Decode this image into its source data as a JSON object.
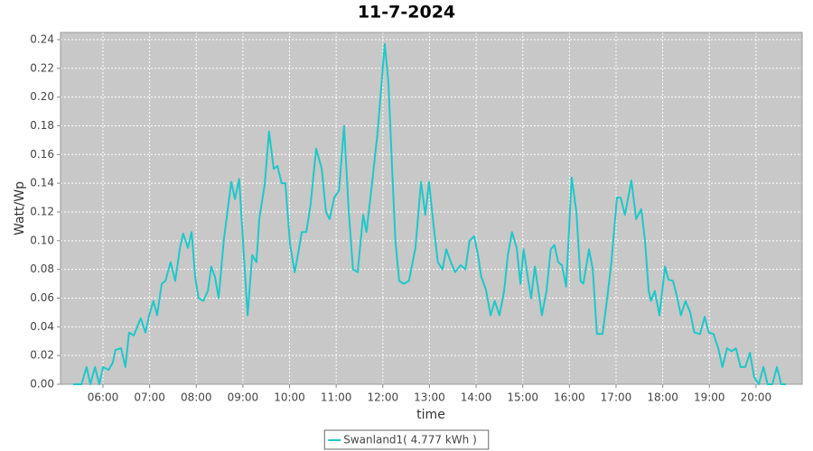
{
  "chart_data": {
    "type": "line",
    "title": "11-7-2024",
    "x_label": "time",
    "y_label": "Watt/Wp",
    "x": [
      5.36,
      5.54,
      5.65,
      5.73,
      5.83,
      5.92,
      6.0,
      6.12,
      6.21,
      6.27,
      6.39,
      6.48,
      6.56,
      6.66,
      6.81,
      6.91,
      6.99,
      7.08,
      7.16,
      7.26,
      7.34,
      7.45,
      7.55,
      7.65,
      7.72,
      7.82,
      7.9,
      7.98,
      8.05,
      8.15,
      8.25,
      8.32,
      8.4,
      8.48,
      8.59,
      8.75,
      8.83,
      8.92,
      9.02,
      9.1,
      9.2,
      9.29,
      9.35,
      9.47,
      9.56,
      9.66,
      9.74,
      9.83,
      9.91,
      10.01,
      10.11,
      10.18,
      10.26,
      10.36,
      10.45,
      10.57,
      10.69,
      10.78,
      10.86,
      10.96,
      11.06,
      11.17,
      11.27,
      11.36,
      11.46,
      11.58,
      11.65,
      11.77,
      11.89,
      12.04,
      12.12,
      12.2,
      12.27,
      12.35,
      12.45,
      12.56,
      12.7,
      12.82,
      12.91,
      12.99,
      13.09,
      13.18,
      13.28,
      13.36,
      13.46,
      13.55,
      13.67,
      13.77,
      13.86,
      13.96,
      14.04,
      14.11,
      14.21,
      14.31,
      14.4,
      14.5,
      14.6,
      14.68,
      14.77,
      14.87,
      14.95,
      15.02,
      15.12,
      15.18,
      15.26,
      15.35,
      15.41,
      15.51,
      15.6,
      15.68,
      15.76,
      15.84,
      15.93,
      16.05,
      16.15,
      16.24,
      16.3,
      16.42,
      16.5,
      16.59,
      16.71,
      16.81,
      16.9,
      17.02,
      17.1,
      17.19,
      17.33,
      17.43,
      17.54,
      17.62,
      17.7,
      17.75,
      17.83,
      17.93,
      18.05,
      18.12,
      18.22,
      18.3,
      18.39,
      18.49,
      18.59,
      18.68,
      18.8,
      18.9,
      18.99,
      19.09,
      19.19,
      19.28,
      19.38,
      19.48,
      19.57,
      19.67,
      19.77,
      19.87,
      19.96,
      20.06,
      20.16,
      20.25,
      20.35,
      20.45,
      20.54,
      20.64
    ],
    "series": [
      {
        "name": "Swanland1( 4.777 kWh )",
        "color": "#1ec8c8",
        "values": [
          0,
          0,
          0.012,
          0,
          0.012,
          0,
          0.012,
          0.01,
          0.015,
          0.024,
          0.025,
          0.012,
          0.036,
          0.034,
          0.046,
          0.036,
          0.048,
          0.058,
          0.048,
          0.07,
          0.072,
          0.085,
          0.072,
          0.095,
          0.105,
          0.095,
          0.106,
          0.074,
          0.06,
          0.058,
          0.065,
          0.082,
          0.075,
          0.06,
          0.1,
          0.141,
          0.129,
          0.143,
          0.09,
          0.048,
          0.09,
          0.085,
          0.115,
          0.14,
          0.176,
          0.15,
          0.152,
          0.14,
          0.14,
          0.098,
          0.078,
          0.09,
          0.106,
          0.106,
          0.125,
          0.164,
          0.15,
          0.12,
          0.115,
          0.13,
          0.135,
          0.18,
          0.12,
          0.08,
          0.078,
          0.118,
          0.106,
          0.14,
          0.176,
          0.237,
          0.21,
          0.15,
          0.1,
          0.072,
          0.07,
          0.072,
          0.095,
          0.141,
          0.118,
          0.141,
          0.11,
          0.085,
          0.08,
          0.094,
          0.085,
          0.078,
          0.083,
          0.08,
          0.1,
          0.103,
          0.09,
          0.075,
          0.066,
          0.048,
          0.058,
          0.048,
          0.065,
          0.09,
          0.106,
          0.095,
          0.07,
          0.094,
          0.072,
          0.06,
          0.082,
          0.062,
          0.048,
          0.065,
          0.094,
          0.097,
          0.085,
          0.083,
          0.068,
          0.144,
          0.12,
          0.072,
          0.07,
          0.094,
          0.08,
          0.035,
          0.035,
          0.06,
          0.085,
          0.13,
          0.13,
          0.118,
          0.142,
          0.115,
          0.122,
          0.1,
          0.065,
          0.058,
          0.065,
          0.048,
          0.082,
          0.073,
          0.072,
          0.062,
          0.048,
          0.058,
          0.05,
          0.036,
          0.035,
          0.047,
          0.036,
          0.035,
          0.025,
          0.012,
          0.025,
          0.023,
          0.025,
          0.012,
          0.012,
          0.022,
          0.005,
          0,
          0.012,
          0,
          0,
          0.012,
          0,
          0
        ]
      }
    ],
    "xlim": [
      5.09,
      20.99
    ],
    "xticks": [
      {
        "value": 6,
        "label": "06:00"
      },
      {
        "value": 7,
        "label": "07:00"
      },
      {
        "value": 8,
        "label": "08:00"
      },
      {
        "value": 9,
        "label": "09:00"
      },
      {
        "value": 10,
        "label": "10:00"
      },
      {
        "value": 11,
        "label": "11:00"
      },
      {
        "value": 12,
        "label": "12:00"
      },
      {
        "value": 13,
        "label": "13:00"
      },
      {
        "value": 14,
        "label": "14:00"
      },
      {
        "value": 15,
        "label": "15:00"
      },
      {
        "value": 16,
        "label": "16:00"
      },
      {
        "value": 17,
        "label": "17:00"
      },
      {
        "value": 18,
        "label": "18:00"
      },
      {
        "value": 19,
        "label": "19:00"
      },
      {
        "value": 20,
        "label": "20:00"
      }
    ],
    "ylim": [
      0,
      0.245
    ],
    "yticks": [
      {
        "value": 0,
        "label": "0.00"
      },
      {
        "value": 0.02,
        "label": "0.02"
      },
      {
        "value": 0.04,
        "label": "0.04"
      },
      {
        "value": 0.06,
        "label": "0.06"
      },
      {
        "value": 0.08,
        "label": "0.08"
      },
      {
        "value": 0.1,
        "label": "0.10"
      },
      {
        "value": 0.12,
        "label": "0.12"
      },
      {
        "value": 0.14,
        "label": "0.14"
      },
      {
        "value": 0.16,
        "label": "0.16"
      },
      {
        "value": 0.18,
        "label": "0.18"
      },
      {
        "value": 0.2,
        "label": "0.20"
      },
      {
        "value": 0.22,
        "label": "0.22"
      },
      {
        "value": 0.24,
        "label": "0.24"
      }
    ],
    "grid": true,
    "legend": "bottom"
  }
}
